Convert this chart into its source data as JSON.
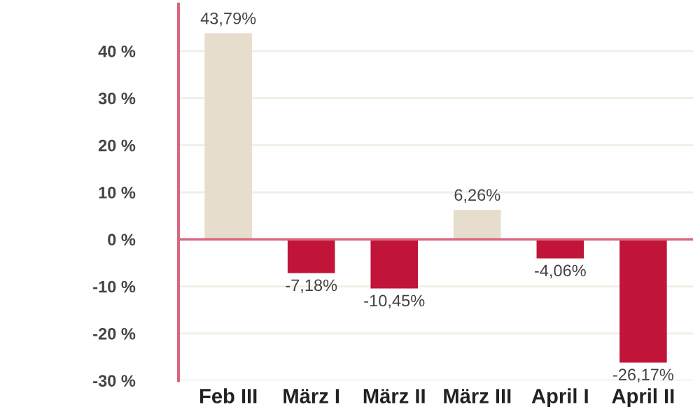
{
  "chart_data": {
    "type": "bar",
    "categories": [
      "Feb III",
      "März I",
      "März II",
      "März III",
      "April I",
      "April II"
    ],
    "values": [
      43.79,
      -7.18,
      -10.45,
      6.26,
      -4.06,
      -26.17
    ],
    "colors": [
      "#e6ddcc",
      "#c01538",
      "#c01538",
      "#e6ddcc",
      "#c01538",
      "#c01538"
    ],
    "value_labels": [
      "43,79%",
      "-7,18%",
      "-10,45%",
      "6,26%",
      "-4,06%",
      "-26,17%"
    ],
    "ylim": [
      -30,
      50
    ],
    "yticks": [
      {
        "value": -30,
        "label": "-30 %"
      },
      {
        "value": -20,
        "label": "-20 %"
      },
      {
        "value": -10,
        "label": "-10 %"
      },
      {
        "value": 0,
        "label": "0 %"
      },
      {
        "value": 10,
        "label": "10 %"
      },
      {
        "value": 20,
        "label": "20 %"
      },
      {
        "value": 30,
        "label": "30 %"
      },
      {
        "value": 40,
        "label": "40 %"
      }
    ],
    "ref_lines": [
      {
        "axis": "y",
        "value": 0,
        "color": "#d9667f"
      }
    ],
    "grid": "y"
  }
}
